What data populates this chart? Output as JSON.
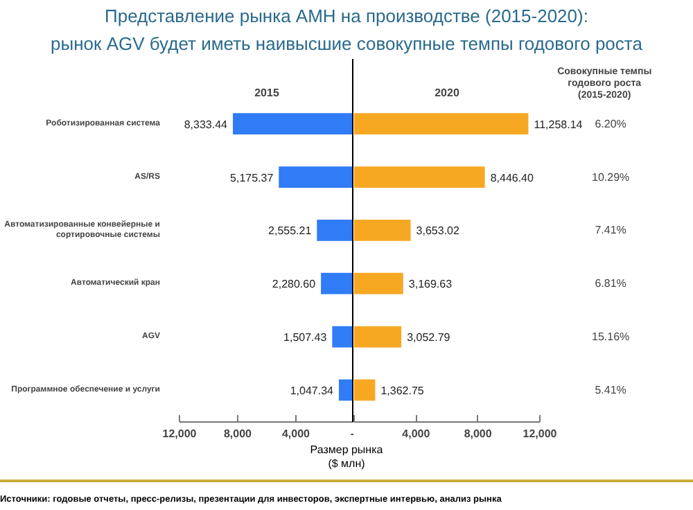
{
  "chart_data": [
    {
      "type": "bar",
      "orientation": "horizontal",
      "title": "Представление рынка АМН на производстве (2015-2020):",
      "subtitle": "рынок AGV будет иметь наивысшие совокупные темпы годового роста",
      "categories": [
        "Роботизированная система",
        "AS/RS",
        "Автоматизированные конвейерные и сортировочные системы",
        "Автоматический кран",
        "AGV",
        "Программное обеспечение и услуги"
      ],
      "series": [
        {
          "name": "2015",
          "color": "#2f7cf6",
          "values": [
            8333.44,
            5175.37,
            2555.21,
            2280.6,
            1507.43,
            1047.34
          ],
          "value_labels": [
            "8,333.44",
            "5,175.37",
            "2,555.21",
            "2,280.60",
            "1,507.43",
            "1,047.34"
          ]
        }
      ],
      "xlabel": "Размер рынка ($ млн)",
      "xlim": [
        12000,
        0
      ],
      "xticks": [
        {
          "value": 12000,
          "label": "12,000"
        },
        {
          "value": 8000,
          "label": "8,000"
        },
        {
          "value": 4000,
          "label": "4,000"
        },
        {
          "value": 0,
          "label": "-"
        }
      ],
      "ref_lines": [
        {
          "axis": "x",
          "value": 0,
          "color": "#000000"
        }
      ],
      "annotations": [
        "Источники: годовые отчеты, пресс-релизы, презентации для инвесторов, экспертные интервью, анализ рынка"
      ],
      "grid": false
    },
    {
      "type": "bar",
      "orientation": "horizontal",
      "categories": [
        "Роботизированная система",
        "AS/RS",
        "Автоматизированные конвейерные и сортировочные системы",
        "Автоматический кран",
        "AGV",
        "Программное обеспечение и услуги"
      ],
      "series": [
        {
          "name": "2020",
          "color": "#f7a823",
          "values": [
            11258.14,
            8446.4,
            3653.02,
            3169.63,
            3052.79,
            1362.75
          ],
          "value_labels": [
            "11,258.14",
            "8,446.40",
            "3,653.02",
            "3,169.63",
            "3,052.79",
            "1,362.75"
          ]
        }
      ],
      "xlim": [
        0,
        12000
      ],
      "xticks": [
        {
          "value": 0,
          "label": null
        },
        {
          "value": 4000,
          "label": "4,000"
        },
        {
          "value": 8000,
          "label": "8,000"
        },
        {
          "value": 12000,
          "label": "12,000"
        }
      ],
      "tick_labels": "x",
      "annotations": [
        "Совокупные темпы годового роста (2015-2020)",
        "6.20%",
        "10.29%",
        "7.41%",
        "6.81%",
        "15.16%",
        "5.41%"
      ],
      "grid": false
    }
  ]
}
